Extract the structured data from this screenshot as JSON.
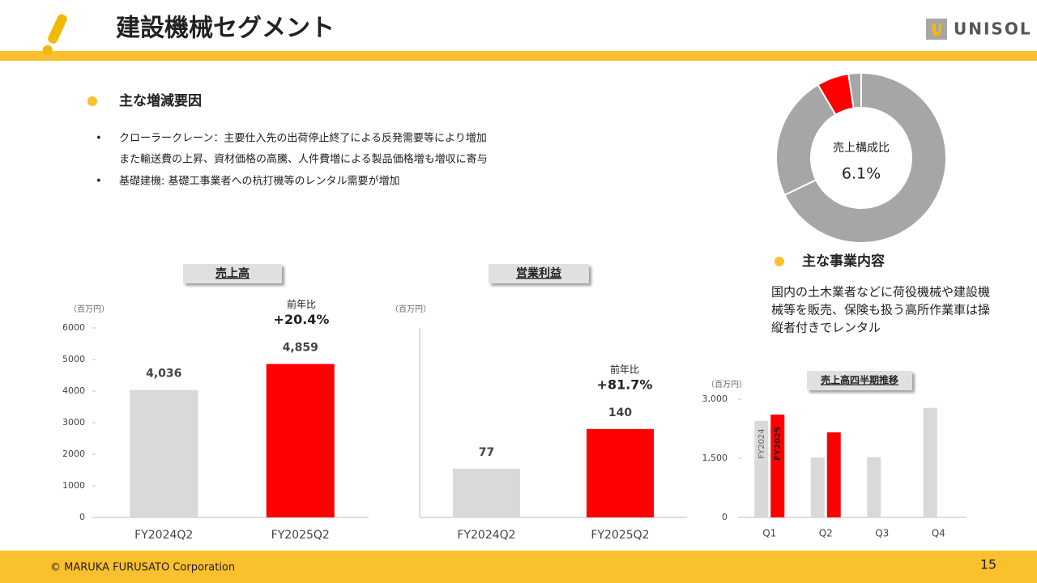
{
  "header": {
    "title": "建設機械セグメント",
    "logo": "UNISOL"
  },
  "factors": {
    "heading": "主な増減要因",
    "bullets": [
      [
        "クローラークレーン：主要仕入先の出荷停止終了による反発需要等により増加",
        "また輸送費の上昇、資材価格の高騰、人件費増による製品価格増も増収に寄与"
      ],
      [
        "基礎建機: 基礎工事業者への杭打機等のレンタル需要が増加"
      ]
    ]
  },
  "business": {
    "heading": "主な事業内容",
    "lines": [
      "国内の土木業者などに荷役機械や建設機",
      "械等を販売、保険も扱う高所作業車は操",
      "縦者付きでレンタル"
    ]
  },
  "footer": {
    "copyright": "© MARUKA FURUSATO Corporation",
    "page": "15"
  },
  "chart_data": [
    {
      "type": "donut",
      "center_label": "売上構成比",
      "values": [
        67.8,
        23.7,
        6.1,
        2.4
      ],
      "value_labels": [
        null,
        null,
        "6.1%",
        null
      ],
      "colors": [
        "#A6A6A6",
        "#A6A6A6",
        "#FF0000",
        "#A6A6A6"
      ]
    },
    {
      "type": "bar",
      "title": "売上高",
      "unit": "（百万円）",
      "categories": [
        "FY2024Q2",
        "FY2025Q2"
      ],
      "values": [
        4036,
        4859
      ],
      "value_labels": [
        "4,036",
        "4,859"
      ],
      "colors": [
        "#D9D9D9",
        "#FF0000"
      ],
      "ylim": [
        0,
        6000
      ],
      "yticks": [
        0,
        1000,
        2000,
        3000,
        4000,
        5000,
        6000
      ],
      "annotation": {
        "label": "前年比",
        "text": "+20.4%"
      }
    },
    {
      "type": "bar",
      "title": "営業利益",
      "unit": "（百万円）",
      "categories": [
        "FY2024Q2",
        "FY2025Q2"
      ],
      "values": [
        77,
        140
      ],
      "colors": [
        "#D9D9D9",
        "#FF0000"
      ],
      "ylim": [
        0,
        300
      ],
      "annotation": {
        "label": "前年比",
        "text": "+81.7%"
      }
    },
    {
      "type": "grouped_bar",
      "title": "売上高四半期推移",
      "unit": "（百万円）",
      "categories": [
        "Q1",
        "Q2",
        "Q3",
        "Q4"
      ],
      "series": [
        {
          "name": "FY2024",
          "color": "#D9D9D9",
          "values": [
            2450,
            1520,
            1530,
            2780
          ]
        },
        {
          "name": "FY2025",
          "color": "#FF0000",
          "values": [
            2610,
            2160,
            null,
            null
          ]
        }
      ],
      "ylim": [
        0,
        3000
      ],
      "yticks": [
        {
          "value": 3000,
          "label": "3,000"
        },
        {
          "value": 1500,
          "label": "1,500"
        },
        0
      ]
    }
  ]
}
